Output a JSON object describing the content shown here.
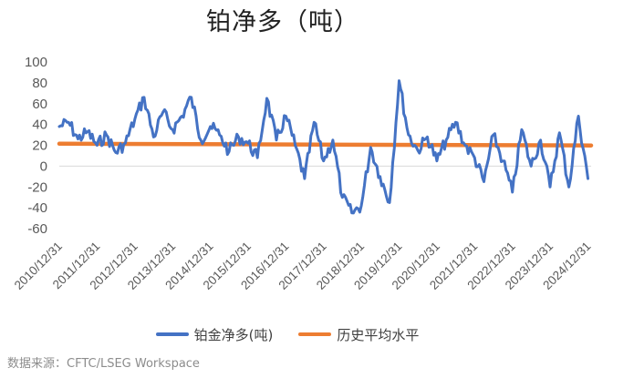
{
  "chart_data": {
    "type": "line",
    "title": "铂净多（吨）",
    "xlabel": "",
    "ylabel": "",
    "ylim": [
      -60,
      100
    ],
    "yticks": [
      100,
      80,
      60,
      40,
      20,
      0,
      -20,
      -40,
      -60
    ],
    "xlim": [
      "2010-12-31",
      "2025-01-31"
    ],
    "x_tick_labels": [
      "2010/12/31",
      "2011/12/31",
      "2012/12/31",
      "2013/12/31",
      "2014/12/31",
      "2015/12/31",
      "2016/12/31",
      "2017/12/31",
      "2018/12/31",
      "2019/12/31",
      "2020/12/31",
      "2021/12/31",
      "2022/12/31",
      "2023/12/31",
      "2024/12/31"
    ],
    "grid": false,
    "legend_position": "bottom",
    "colors": {
      "net_long": "#4472C4",
      "historical_avg": "#ED7D31"
    },
    "series": [
      {
        "name": "铂金净多(吨)",
        "x": [
          "2010-12-31",
          "2011-03-31",
          "2011-06-30",
          "2011-09-30",
          "2011-12-31",
          "2012-03-31",
          "2012-06-30",
          "2012-09-30",
          "2012-12-31",
          "2013-03-31",
          "2013-06-30",
          "2013-09-30",
          "2013-12-31",
          "2014-03-31",
          "2014-06-30",
          "2014-09-30",
          "2014-12-31",
          "2015-03-31",
          "2015-06-30",
          "2015-09-30",
          "2015-12-31",
          "2016-03-31",
          "2016-06-30",
          "2016-09-30",
          "2016-12-31",
          "2017-03-31",
          "2017-06-30",
          "2017-09-30",
          "2017-12-31",
          "2018-03-31",
          "2018-06-30",
          "2018-09-30",
          "2018-12-31",
          "2019-03-31",
          "2019-06-30",
          "2019-09-30",
          "2019-12-31",
          "2020-03-31",
          "2020-06-30",
          "2020-09-30",
          "2020-12-31",
          "2021-03-31",
          "2021-06-30",
          "2021-09-30",
          "2021-12-31",
          "2022-03-31",
          "2022-06-30",
          "2022-09-30",
          "2022-12-31",
          "2023-03-31",
          "2023-06-30",
          "2023-09-30",
          "2023-12-31",
          "2024-03-31",
          "2024-06-30",
          "2024-09-30",
          "2024-12-31"
        ],
        "values": [
          38,
          42,
          26,
          33,
          20,
          30,
          13,
          22,
          45,
          66,
          28,
          52,
          35,
          48,
          66,
          25,
          38,
          30,
          14,
          28,
          22,
          8,
          65,
          25,
          48,
          20,
          -12,
          42,
          5,
          25,
          -30,
          -45,
          -38,
          18,
          -10,
          -35,
          82,
          30,
          15,
          28,
          5,
          25,
          42,
          20,
          8,
          -15,
          30,
          5,
          -25,
          35,
          0,
          25,
          -20,
          32,
          -20,
          48,
          -12
        ]
      },
      {
        "name": "历史平均水平",
        "x": [
          "2010-12-31",
          "2025-01-31"
        ],
        "values": [
          21.5,
          19.8
        ]
      }
    ]
  },
  "legend": {
    "item1": "铂金净多(吨)",
    "item2": "历史平均水平"
  },
  "source": "数据来源：CFTC/LSEG Workspace"
}
